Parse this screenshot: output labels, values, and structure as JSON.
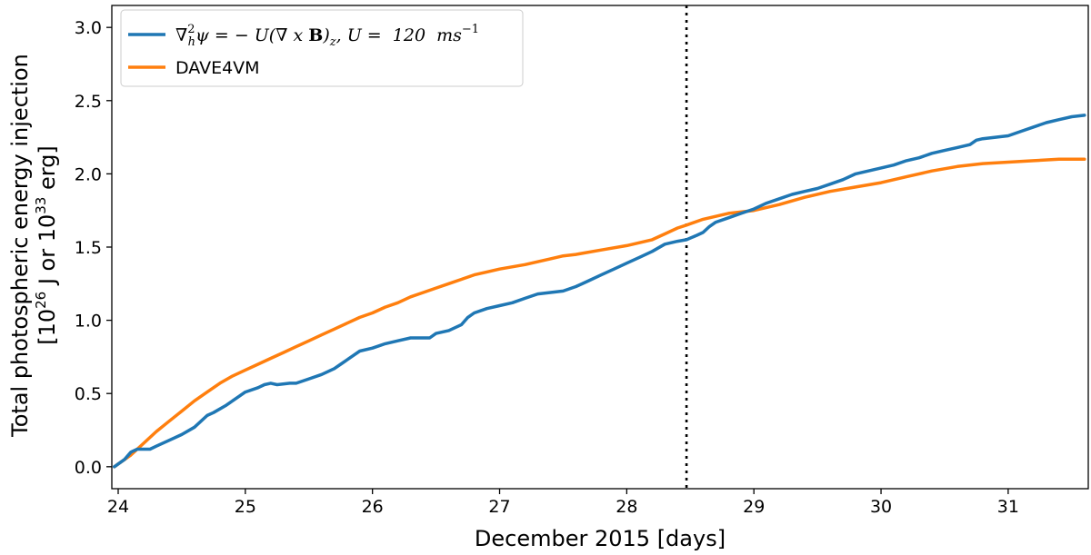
{
  "chart_data": {
    "type": "line",
    "xlabel": "December 2015 [days]",
    "ylabel_line1": "Total photospheric energy injection",
    "ylabel_line2_prefix": "[10",
    "ylabel_line2_exp1": "26",
    "ylabel_line2_mid": " J or 10",
    "ylabel_line2_exp2": "33",
    "ylabel_line2_suffix": " erg]",
    "xlim": [
      23.95,
      31.63
    ],
    "ylim": [
      -0.15,
      3.15
    ],
    "xticks": [
      24,
      25,
      26,
      27,
      28,
      29,
      30,
      31
    ],
    "yticks": [
      0.0,
      0.5,
      1.0,
      1.5,
      2.0,
      2.5,
      3.0
    ],
    "ytick_labels": [
      "0.0",
      "0.5",
      "1.0",
      "1.5",
      "2.0",
      "2.5",
      "3.0"
    ],
    "vline_x": 28.47,
    "legend_position": "upper-left",
    "series": [
      {
        "name": "∇h²ψ = −U(∇ x B)z, U = 120 ms⁻¹",
        "legend": {
          "nabla": "∇",
          "sub_h": "h",
          "sup_2": "2",
          "rest1": "ψ = − U(∇ x ",
          "bold_B": "B",
          "close": ")",
          "sub_z": "z",
          "rest2": ", U =  120  ",
          "unit": "ms",
          "unit_exp": "−1"
        },
        "color": "#1f77b4",
        "x": [
          23.97,
          24.05,
          24.1,
          24.15,
          24.25,
          24.3,
          24.4,
          24.5,
          24.6,
          24.7,
          24.75,
          24.85,
          24.95,
          25.0,
          25.1,
          25.15,
          25.2,
          25.25,
          25.35,
          25.4,
          25.5,
          25.6,
          25.7,
          25.75,
          25.85,
          25.9,
          26.0,
          26.1,
          26.2,
          26.3,
          26.4,
          26.45,
          26.5,
          26.6,
          26.7,
          26.75,
          26.8,
          26.9,
          27.0,
          27.1,
          27.2,
          27.3,
          27.4,
          27.5,
          27.6,
          27.7,
          27.8,
          27.9,
          28.0,
          28.1,
          28.2,
          28.3,
          28.4,
          28.47,
          28.55,
          28.6,
          28.65,
          28.7,
          28.8,
          28.9,
          29.0,
          29.1,
          29.2,
          29.3,
          29.4,
          29.5,
          29.6,
          29.7,
          29.8,
          29.9,
          30.0,
          30.1,
          30.2,
          30.3,
          30.4,
          30.5,
          30.6,
          30.7,
          30.75,
          30.8,
          30.9,
          31.0,
          31.1,
          31.2,
          31.3,
          31.4,
          31.5,
          31.6
        ],
        "values": [
          0.0,
          0.05,
          0.1,
          0.12,
          0.12,
          0.14,
          0.18,
          0.22,
          0.27,
          0.35,
          0.37,
          0.42,
          0.48,
          0.51,
          0.54,
          0.56,
          0.57,
          0.56,
          0.57,
          0.57,
          0.6,
          0.63,
          0.67,
          0.7,
          0.76,
          0.79,
          0.81,
          0.84,
          0.86,
          0.88,
          0.88,
          0.88,
          0.91,
          0.93,
          0.97,
          1.02,
          1.05,
          1.08,
          1.1,
          1.12,
          1.15,
          1.18,
          1.19,
          1.2,
          1.23,
          1.27,
          1.31,
          1.35,
          1.39,
          1.43,
          1.47,
          1.52,
          1.54,
          1.55,
          1.58,
          1.6,
          1.64,
          1.67,
          1.7,
          1.73,
          1.76,
          1.8,
          1.83,
          1.86,
          1.88,
          1.9,
          1.93,
          1.96,
          2.0,
          2.02,
          2.04,
          2.06,
          2.09,
          2.11,
          2.14,
          2.16,
          2.18,
          2.2,
          2.23,
          2.24,
          2.25,
          2.26,
          2.29,
          2.32,
          2.35,
          2.37,
          2.39,
          2.4
        ]
      },
      {
        "name": "DAVE4VM",
        "legend": {
          "label": "DAVE4VM"
        },
        "color": "#ff7f0e",
        "x": [
          23.97,
          24.1,
          24.2,
          24.3,
          24.4,
          24.5,
          24.6,
          24.7,
          24.8,
          24.9,
          25.0,
          25.1,
          25.2,
          25.3,
          25.4,
          25.5,
          25.6,
          25.7,
          25.8,
          25.9,
          26.0,
          26.1,
          26.2,
          26.3,
          26.4,
          26.5,
          26.6,
          26.7,
          26.8,
          26.9,
          27.0,
          27.2,
          27.4,
          27.5,
          27.6,
          27.8,
          28.0,
          28.2,
          28.3,
          28.4,
          28.47,
          28.6,
          28.8,
          29.0,
          29.2,
          29.4,
          29.6,
          29.8,
          30.0,
          30.2,
          30.4,
          30.6,
          30.8,
          31.0,
          31.2,
          31.4,
          31.6
        ],
        "values": [
          0.0,
          0.08,
          0.16,
          0.24,
          0.31,
          0.38,
          0.45,
          0.51,
          0.57,
          0.62,
          0.66,
          0.7,
          0.74,
          0.78,
          0.82,
          0.86,
          0.9,
          0.94,
          0.98,
          1.02,
          1.05,
          1.09,
          1.12,
          1.16,
          1.19,
          1.22,
          1.25,
          1.28,
          1.31,
          1.33,
          1.35,
          1.38,
          1.42,
          1.44,
          1.45,
          1.48,
          1.51,
          1.55,
          1.59,
          1.63,
          1.65,
          1.69,
          1.73,
          1.75,
          1.79,
          1.84,
          1.88,
          1.91,
          1.94,
          1.98,
          2.02,
          2.05,
          2.07,
          2.08,
          2.09,
          2.1,
          2.1
        ]
      }
    ]
  }
}
